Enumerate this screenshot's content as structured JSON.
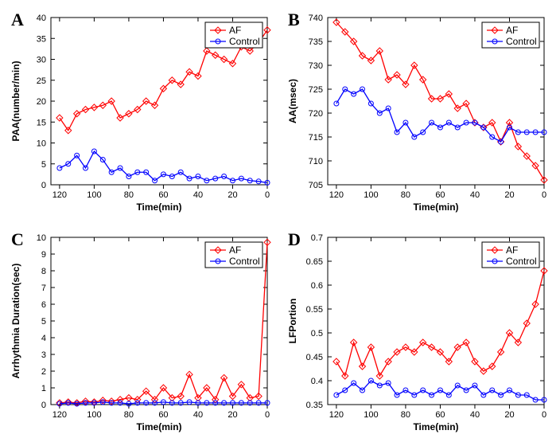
{
  "palette": {
    "af": "#ff0000",
    "control": "#0000ff",
    "axis": "#000000",
    "background": "#ffffff"
  },
  "typography": {
    "panel_label_fontsize": 22,
    "panel_label_family": "Times New Roman",
    "axis_label_fontsize": 12,
    "tick_fontsize": 11,
    "legend_fontsize": 12
  },
  "marker": {
    "af": "diamond",
    "control": "circle",
    "size": 4
  },
  "panels": {
    "A": {
      "type": "line",
      "label": "A",
      "xlabel": "Time(min)",
      "ylabel": "PAA(number/min)",
      "xlim": [
        125,
        0
      ],
      "xtick_step": 20,
      "ylim": [
        0,
        40
      ],
      "ytick_step": 5,
      "x": [
        120,
        115,
        110,
        105,
        100,
        95,
        90,
        85,
        80,
        75,
        70,
        65,
        60,
        55,
        50,
        45,
        40,
        35,
        30,
        25,
        20,
        15,
        10,
        5,
        0
      ],
      "af": [
        16,
        13,
        17,
        18,
        18.5,
        19,
        20,
        16,
        17,
        18,
        20,
        19,
        23,
        25,
        24,
        27,
        26,
        32,
        31,
        30,
        29,
        33,
        32,
        34,
        37
      ],
      "control": [
        4,
        5,
        7,
        4,
        8,
        6,
        3,
        4,
        2,
        3,
        3,
        1,
        2.5,
        2,
        3,
        1.5,
        2,
        1,
        1.5,
        2,
        1,
        1.5,
        1,
        0.8,
        0.5
      ],
      "legend": {
        "af": "AF",
        "control": "Control",
        "pos": "top-right"
      }
    },
    "B": {
      "type": "line",
      "label": "B",
      "xlabel": "Time(min)",
      "ylabel": "AA(msec)",
      "xlim": [
        125,
        0
      ],
      "xtick_step": 20,
      "ylim": [
        705,
        740
      ],
      "ytick_step": 5,
      "x": [
        120,
        115,
        110,
        105,
        100,
        95,
        90,
        85,
        80,
        75,
        70,
        65,
        60,
        55,
        50,
        45,
        40,
        35,
        30,
        25,
        20,
        15,
        10,
        5,
        0
      ],
      "af": [
        739,
        737,
        735,
        732,
        731,
        733,
        727,
        728,
        726,
        730,
        727,
        723,
        723,
        724,
        721,
        722,
        718,
        717,
        718,
        714,
        718,
        713,
        711,
        709,
        706
      ],
      "control": [
        722,
        725,
        724,
        725,
        722,
        720,
        721,
        716,
        718,
        715,
        716,
        718,
        717,
        718,
        717,
        718,
        718,
        717,
        715,
        714,
        717,
        716,
        716,
        716,
        716
      ],
      "legend": {
        "af": "AF",
        "control": "Control",
        "pos": "top-right"
      }
    },
    "C": {
      "type": "line",
      "label": "C",
      "xlabel": "Time(min)",
      "ylabel": "Arrhythmia Duration(sec)",
      "xlim": [
        125,
        0
      ],
      "xtick_step": 20,
      "ylim": [
        0,
        10
      ],
      "ytick_step": 1,
      "x": [
        120,
        115,
        110,
        105,
        100,
        95,
        90,
        85,
        80,
        75,
        70,
        65,
        60,
        55,
        50,
        45,
        40,
        35,
        30,
        25,
        20,
        15,
        10,
        5,
        0
      ],
      "af": [
        0.1,
        0.15,
        0.1,
        0.2,
        0.15,
        0.25,
        0.2,
        0.3,
        0.4,
        0.3,
        0.8,
        0.3,
        1.0,
        0.4,
        0.5,
        1.8,
        0.4,
        1.0,
        0.3,
        1.6,
        0.5,
        1.2,
        0.4,
        0.5,
        9.7
      ],
      "control": [
        0.05,
        0.1,
        0.05,
        0.1,
        0.1,
        0.15,
        0.1,
        0.1,
        0.05,
        0.1,
        0.1,
        0.1,
        0.15,
        0.1,
        0.1,
        0.15,
        0.1,
        0.1,
        0.1,
        0.1,
        0.1,
        0.1,
        0.1,
        0.1,
        0.1
      ],
      "legend": {
        "af": "AF",
        "control": "Control",
        "pos": "top-right"
      }
    },
    "D": {
      "type": "line",
      "label": "D",
      "xlabel": "Time(min)",
      "ylabel": "LFPortion",
      "xlim": [
        125,
        0
      ],
      "xtick_step": 20,
      "ylim": [
        0.35,
        0.7
      ],
      "ytick_step": 0.05,
      "x": [
        120,
        115,
        110,
        105,
        100,
        95,
        90,
        85,
        80,
        75,
        70,
        65,
        60,
        55,
        50,
        45,
        40,
        35,
        30,
        25,
        20,
        15,
        10,
        5,
        0
      ],
      "af": [
        0.44,
        0.41,
        0.48,
        0.43,
        0.47,
        0.41,
        0.44,
        0.46,
        0.47,
        0.46,
        0.48,
        0.47,
        0.46,
        0.44,
        0.47,
        0.48,
        0.44,
        0.42,
        0.43,
        0.46,
        0.5,
        0.48,
        0.52,
        0.56,
        0.63
      ],
      "control": [
        0.37,
        0.38,
        0.395,
        0.38,
        0.4,
        0.39,
        0.395,
        0.37,
        0.38,
        0.37,
        0.38,
        0.37,
        0.38,
        0.37,
        0.39,
        0.38,
        0.39,
        0.37,
        0.38,
        0.37,
        0.38,
        0.37,
        0.37,
        0.36,
        0.36
      ],
      "legend": {
        "af": "AF",
        "control": "Control",
        "pos": "top-right"
      }
    }
  }
}
